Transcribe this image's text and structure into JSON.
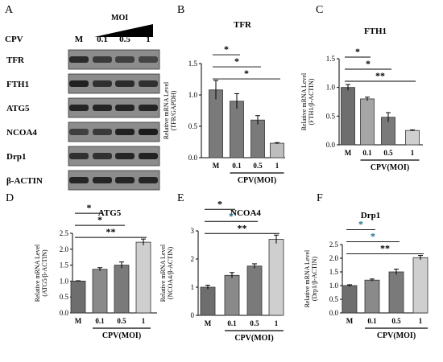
{
  "panels": {
    "A": {
      "letter": "A",
      "cpv_label": "CPV",
      "moi_label": "MOI",
      "lanes": [
        "M",
        "0.1",
        "0.5",
        "1"
      ],
      "blots": [
        {
          "label": "TFR",
          "intensity": [
            0.75,
            0.6,
            0.55,
            0.5
          ]
        },
        {
          "label": "FTH1",
          "intensity": [
            0.85,
            0.7,
            0.75,
            0.7
          ]
        },
        {
          "label": "ATG5",
          "intensity": [
            0.8,
            0.8,
            0.8,
            0.8
          ]
        },
        {
          "label": "NCOA4",
          "intensity": [
            0.55,
            0.6,
            0.85,
            0.9
          ]
        },
        {
          "label": "Drp1",
          "intensity": [
            0.7,
            0.7,
            0.8,
            0.85
          ]
        },
        {
          "label": "β-ACTIN",
          "intensity": [
            0.8,
            0.8,
            0.8,
            0.8
          ]
        }
      ]
    }
  },
  "chart_data": [
    {
      "id": "B",
      "letter": "B",
      "type": "bar",
      "title": "TFR",
      "ylabel": [
        "Relative mRNA Level",
        "(TFR/GAPDH)"
      ],
      "xlabel": "CPV(MOI)",
      "categories": [
        "M",
        "0.1",
        "0.5",
        "1"
      ],
      "values": [
        1.08,
        0.9,
        0.6,
        0.23
      ],
      "errors": [
        0.15,
        0.12,
        0.07,
        0.01
      ],
      "ylim": [
        0,
        1.5
      ],
      "yticks": [
        "0.0",
        "0.5",
        "1.0",
        "1.5"
      ],
      "significance": [
        {
          "from": "M",
          "to": "0.1",
          "label": "*",
          "color": "#000000"
        },
        {
          "from": "M",
          "to": "0.5",
          "label": "*",
          "color": "#000000"
        },
        {
          "from": "M",
          "to": "1",
          "label": "*",
          "color": "#000000"
        }
      ],
      "colors": [
        "#7a7a7a",
        "#7a7a7a",
        "#7a7a7a",
        "#bdbdbd"
      ]
    },
    {
      "id": "C",
      "letter": "C",
      "type": "bar",
      "title": "FTH1",
      "ylabel": [
        "Relative mRNA Level",
        "(FTH1/β-ACTIN)"
      ],
      "xlabel": "CPV(MOI)",
      "categories": [
        "M",
        "0.1",
        "0.5",
        "1"
      ],
      "values": [
        1.0,
        0.8,
        0.48,
        0.25
      ],
      "errors": [
        0.05,
        0.03,
        0.08,
        0.01
      ],
      "ylim": [
        0,
        1.5
      ],
      "yticks": [
        "0.0",
        "0.5",
        "1.0",
        "1.5"
      ],
      "significance": [
        {
          "from": "M",
          "to": "0.1",
          "label": "*",
          "color": "#000000"
        },
        {
          "from": "M",
          "to": "0.5",
          "label": "*",
          "color": "#000000"
        },
        {
          "from": "M",
          "to": "1",
          "label": "**",
          "color": "#000000"
        }
      ],
      "colors": [
        "#6e6e6e",
        "#a6a6a6",
        "#7a7a7a",
        "#cfcfcf"
      ]
    },
    {
      "id": "D",
      "letter": "D",
      "type": "bar",
      "title": "ATG5",
      "ylabel": [
        "Relative mRNA Level",
        "(ATG5/β-ACTIN)"
      ],
      "xlabel": "CPV(MOI)",
      "categories": [
        "M",
        "0.1",
        "0.5",
        "1"
      ],
      "values": [
        1.0,
        1.37,
        1.5,
        2.22
      ],
      "errors": [
        0.01,
        0.05,
        0.1,
        0.1
      ],
      "ylim": [
        0,
        2.5
      ],
      "yticks": [
        "0.0",
        "0.5",
        "1.0",
        "1.5",
        "2.0",
        "2.5"
      ],
      "significance": [
        {
          "from": "M",
          "to": "0.1",
          "label": "*",
          "color": "#000000"
        },
        {
          "from": "M",
          "to": "0.5",
          "label": "*",
          "color": "#000000"
        },
        {
          "from": "M",
          "to": "1",
          "label": "**",
          "color": "#000000"
        }
      ],
      "colors": [
        "#6e6e6e",
        "#8a8a8a",
        "#7a7a7a",
        "#cfcfcf"
      ]
    },
    {
      "id": "E",
      "letter": "E",
      "type": "bar",
      "title": "NCOA4",
      "ylabel": [
        "Relative mRNA Level",
        "(NCOA4/β-ACTIN)"
      ],
      "xlabel": "CPV(MOI)",
      "categories": [
        "M",
        "0.1",
        "0.5",
        "1"
      ],
      "values": [
        1.0,
        1.42,
        1.75,
        2.7
      ],
      "errors": [
        0.07,
        0.1,
        0.08,
        0.15
      ],
      "ylim": [
        0,
        3
      ],
      "yticks": [
        "0",
        "1",
        "2",
        "3"
      ],
      "significance": [
        {
          "from": "M",
          "to": "0.1",
          "label": "*",
          "color": "#000000"
        },
        {
          "from": "M",
          "to": "0.5",
          "label": "*",
          "color": "#1f6f8b"
        },
        {
          "from": "M",
          "to": "1",
          "label": "**",
          "color": "#000000"
        }
      ],
      "colors": [
        "#6e6e6e",
        "#8a8a8a",
        "#7a7a7a",
        "#cfcfcf"
      ]
    },
    {
      "id": "F",
      "letter": "F",
      "type": "bar",
      "title": "Drp1",
      "ylabel": [
        "Relative mRNA Level",
        "(Drp1/β-ACTIN)"
      ],
      "xlabel": "CPV(MOI)",
      "categories": [
        "M",
        "0.1",
        "0.5",
        "1"
      ],
      "values": [
        1.0,
        1.2,
        1.5,
        2.02
      ],
      "errors": [
        0.03,
        0.04,
        0.1,
        0.08
      ],
      "ylim": [
        0,
        2.5
      ],
      "yticks": [
        "0.0",
        "0.5",
        "1.0",
        "1.5",
        "2.0",
        "2.5"
      ],
      "significance": [
        {
          "from": "M",
          "to": "0.1",
          "label": "*",
          "color": "#1f6f8b"
        },
        {
          "from": "M",
          "to": "0.5",
          "label": "*",
          "color": "#1f6f8b"
        },
        {
          "from": "M",
          "to": "1",
          "label": "**",
          "color": "#000000"
        }
      ],
      "colors": [
        "#6e6e6e",
        "#8a8a8a",
        "#7a7a7a",
        "#cfcfcf"
      ]
    }
  ]
}
